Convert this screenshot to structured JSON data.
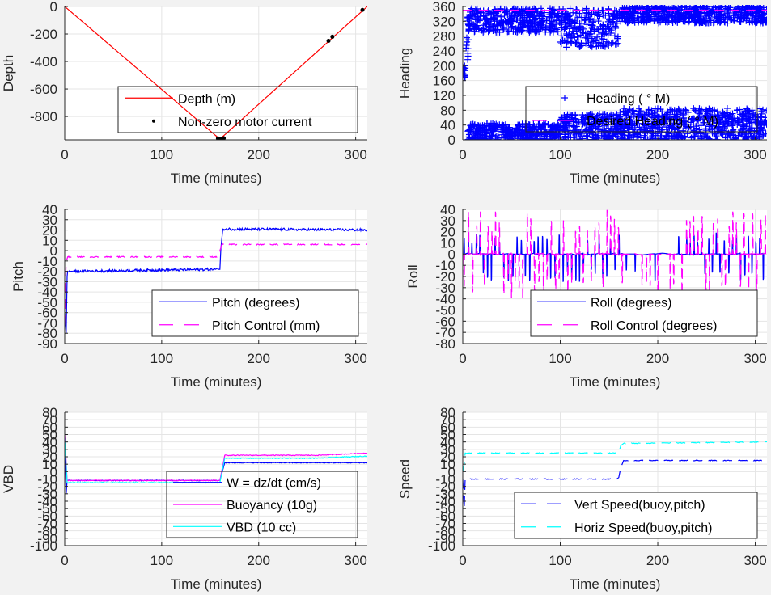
{
  "figure": {
    "background": "#f2f2f2",
    "axes_background": "#ffffff",
    "grid_color": "#e5e5e5",
    "axis_color": "#262626"
  },
  "chart_data": [
    {
      "id": "depth",
      "type": "line",
      "title": "",
      "xlabel": "Time (minutes)",
      "ylabel": "Depth",
      "xlim": [
        0,
        312
      ],
      "ylim": [
        -970,
        0
      ],
      "xticks": [
        0,
        100,
        200,
        300
      ],
      "yticks": [
        0,
        -200,
        -400,
        -600,
        -800
      ],
      "grid": true,
      "legend_position": "bottom-right",
      "series": [
        {
          "name": "Depth (m)",
          "style": "solid",
          "color": "#ff0000",
          "x": [
            0,
            160,
            312
          ],
          "y": [
            0,
            -965,
            0
          ]
        },
        {
          "name": "Non-zero motor current",
          "style": "dots",
          "color": "#000000",
          "x": [
            158,
            160,
            161,
            162,
            163,
            164,
            272,
            276,
            307
          ],
          "y": [
            -960,
            -963,
            -965,
            -964,
            -962,
            -958,
            -250,
            -220,
            -25
          ]
        }
      ]
    },
    {
      "id": "heading",
      "type": "scatter",
      "title": "",
      "xlabel": "Time (minutes)",
      "ylabel": "Heading",
      "xlim": [
        0,
        312
      ],
      "ylim": [
        0,
        360
      ],
      "xticks": [
        0,
        100,
        200,
        300
      ],
      "yticks": [
        0,
        40,
        80,
        120,
        160,
        200,
        240,
        280,
        320,
        360
      ],
      "yticklabels_shown": [
        0,
        20,
        40,
        60,
        80,
        120,
        160,
        200,
        240,
        280,
        320,
        360
      ],
      "grid": true,
      "legend_position": "bottom-right",
      "series": [
        {
          "name": "Heading ( ° M)",
          "style": "plus",
          "color": "#0000ff",
          "bands": [
            {
              "x": [
                0,
                3
              ],
              "ymin": 160,
              "ymax": 200
            },
            {
              "x": [
                3,
                6
              ],
              "ymin": 200,
              "ymax": 350
            },
            {
              "x": [
                5,
                100
              ],
              "ymin": 290,
              "ymax": 355
            },
            {
              "x": [
                5,
                100
              ],
              "ymin": 0,
              "ymax": 45
            },
            {
              "x": [
                100,
                160
              ],
              "ymin": 250,
              "ymax": 355
            },
            {
              "x": [
                100,
                160
              ],
              "ymin": 0,
              "ymax": 70
            },
            {
              "x": [
                160,
                312
              ],
              "ymin": 315,
              "ymax": 360
            },
            {
              "x": [
                160,
                312
              ],
              "ymin": 0,
              "ymax": 85
            }
          ]
        },
        {
          "name": "Desired Heading ( ° M)",
          "style": "dashed",
          "color": "#ff00ff",
          "x": [
            0,
            312
          ],
          "y": [
            350,
            350
          ]
        }
      ]
    },
    {
      "id": "pitch",
      "type": "line",
      "title": "",
      "xlabel": "Time (minutes)",
      "ylabel": "Pitch",
      "xlim": [
        0,
        312
      ],
      "ylim": [
        -90,
        40
      ],
      "xticks": [
        0,
        100,
        200,
        300
      ],
      "yticks": [
        40,
        30,
        20,
        10,
        0,
        -10,
        -20,
        -30,
        -40,
        -50,
        -60,
        -70,
        -80,
        -90
      ],
      "grid": true,
      "legend_position": "bottom-right",
      "series": [
        {
          "name": "Pitch (degrees)",
          "style": "solid",
          "color": "#0000ff",
          "x": [
            0,
            1.5,
            2.5,
            3,
            158,
            160,
            161,
            163,
            312
          ],
          "y": [
            -60,
            -80,
            -25,
            -20,
            -18,
            -18,
            2,
            21,
            20
          ]
        },
        {
          "name": "Pitch Control (mm)",
          "style": "dashed",
          "color": "#ff00ff",
          "x": [
            0,
            1.5,
            2.5,
            3,
            158,
            160,
            161,
            162,
            312
          ],
          "y": [
            -72,
            -8,
            -8,
            -6,
            -6,
            0,
            3,
            6,
            6
          ]
        }
      ]
    },
    {
      "id": "roll",
      "type": "line",
      "title": "",
      "xlabel": "Time (minutes)",
      "ylabel": "Roll",
      "xlim": [
        0,
        312
      ],
      "ylim": [
        -80,
        40
      ],
      "xticks": [
        0,
        100,
        200,
        300
      ],
      "yticks": [
        40,
        30,
        20,
        10,
        0,
        -10,
        -20,
        -30,
        -40,
        -50,
        -60,
        -70,
        -80
      ],
      "grid": true,
      "legend_position": "bottom-right",
      "series": [
        {
          "name": "Roll (degrees)",
          "style": "solid",
          "color": "#0000ff",
          "baseline": 0,
          "spike_range": [
            -25,
            20
          ]
        },
        {
          "name": "Roll Control (degrees)",
          "style": "dashed",
          "color": "#ff00ff",
          "baseline": 0,
          "spike_range": [
            -40,
            40
          ]
        }
      ]
    },
    {
      "id": "vbd",
      "type": "line",
      "title": "",
      "xlabel": "Time (minutes)",
      "ylabel": "VBD",
      "xlim": [
        0,
        312
      ],
      "ylim": [
        -100,
        80
      ],
      "xticks": [
        0,
        100,
        200,
        300
      ],
      "yticks": [
        80,
        70,
        60,
        50,
        40,
        30,
        20,
        10,
        0,
        -10,
        -20,
        -30,
        -40,
        -50,
        -60,
        -70,
        -80,
        -90,
        -100
      ],
      "grid": true,
      "legend_position": "bottom-right",
      "series": [
        {
          "name": "W = dz/dt (cm/s)",
          "style": "solid",
          "color": "#0000ff",
          "x": [
            0,
            1.5,
            2.5,
            3,
            158,
            160,
            165,
            312
          ],
          "y": [
            45,
            -30,
            -12,
            -12,
            -12,
            -12,
            12,
            12
          ]
        },
        {
          "name": "Buoyancy (10g)",
          "style": "solid",
          "color": "#ff00ff",
          "x": [
            0,
            2.5,
            3,
            158,
            160,
            165,
            260,
            312
          ],
          "y": [
            50,
            -12,
            -12,
            -12,
            -12,
            22,
            22,
            25
          ]
        },
        {
          "name": "VBD (10 cc)",
          "style": "solid",
          "color": "#00ffff",
          "x": [
            0,
            2.5,
            3,
            158,
            160,
            165,
            260,
            312
          ],
          "y": [
            45,
            -15,
            -15,
            -15,
            -15,
            18,
            18,
            21
          ]
        }
      ]
    },
    {
      "id": "speed",
      "type": "line",
      "title": "",
      "xlabel": "Time (minutes)",
      "ylabel": "Speed",
      "xlim": [
        0,
        312
      ],
      "ylim": [
        -100,
        80
      ],
      "xticks": [
        0,
        100,
        200,
        300
      ],
      "yticks": [
        80,
        70,
        60,
        50,
        40,
        30,
        20,
        10,
        0,
        -10,
        -20,
        -30,
        -40,
        -50,
        -60,
        -70,
        -80,
        -90,
        -100
      ],
      "grid": true,
      "legend_position": "bottom-right",
      "series": [
        {
          "name": "Vert Speed(buoy,pitch)",
          "style": "dashed",
          "color": "#0000ff",
          "x": [
            0,
            1.5,
            2.5,
            3,
            158,
            160,
            162,
            165,
            312
          ],
          "y": [
            -10,
            -50,
            -10,
            -10,
            -10,
            -8,
            5,
            15,
            15
          ]
        },
        {
          "name": "Horiz Speed(buoy,pitch)",
          "style": "dashed",
          "color": "#00ffff",
          "x": [
            0,
            1.5,
            2.5,
            3,
            158,
            160,
            162,
            165,
            312
          ],
          "y": [
            0,
            10,
            25,
            25,
            25,
            25,
            35,
            38,
            40
          ]
        }
      ]
    }
  ]
}
